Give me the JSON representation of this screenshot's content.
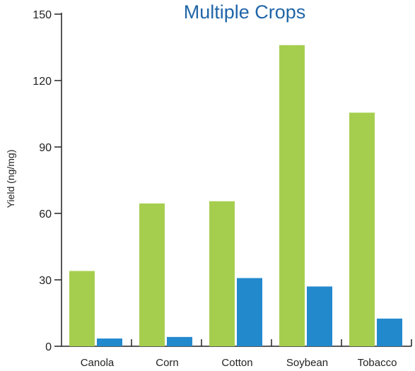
{
  "chart_data": {
    "type": "bar",
    "title": "Multiple Crops",
    "xlabel": "",
    "ylabel": "Yield (ng/mg)",
    "ylim": [
      0,
      150
    ],
    "yticks": [
      0,
      30,
      60,
      90,
      120,
      150
    ],
    "categories": [
      "Canola",
      "Corn",
      "Cotton",
      "Soybean",
      "Tobacco"
    ],
    "series": [
      {
        "values": [
          34,
          64.5,
          65.5,
          136,
          105.5
        ],
        "color": "#a6ce4e"
      },
      {
        "values": [
          3.5,
          4.2,
          30.8,
          27,
          12.5
        ],
        "color": "#2389cd"
      }
    ],
    "grid": false,
    "legend": "none",
    "title_color": "#2166a8"
  }
}
